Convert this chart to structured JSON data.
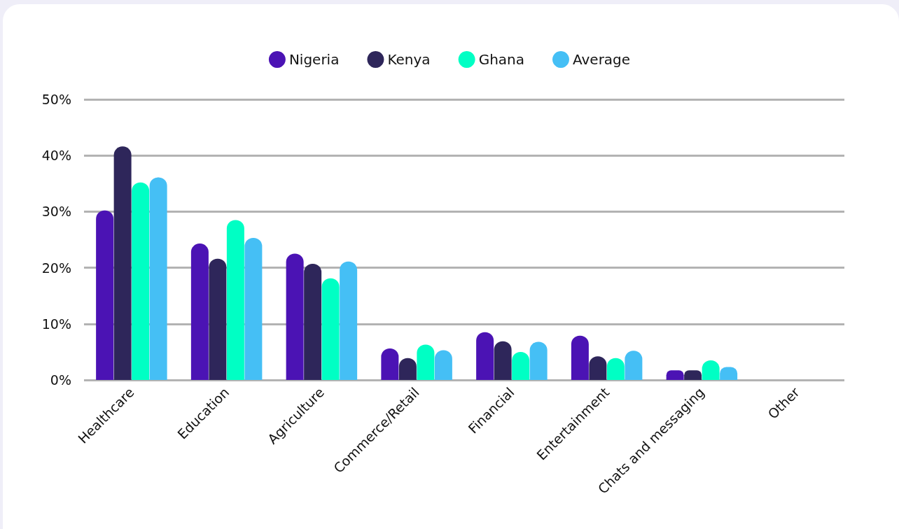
{
  "chart_data": {
    "type": "bar",
    "categories": [
      "Healthcare",
      "Education",
      "Agriculture",
      "Commerce/Retail",
      "Financial",
      "Entertainment",
      "Chats and messaging",
      "Other"
    ],
    "series": [
      {
        "name": "Nigeria",
        "color": "#4b13b4",
        "values": [
          30.2,
          24.3,
          22.5,
          5.6,
          8.5,
          7.9,
          1.7,
          0
        ]
      },
      {
        "name": "Kenya",
        "color": "#2e265a",
        "values": [
          41.6,
          21.6,
          20.7,
          3.9,
          6.9,
          4.2,
          1.7,
          0
        ]
      },
      {
        "name": "Ghana",
        "color": "#00ffc4",
        "values": [
          35.2,
          28.5,
          18.1,
          6.3,
          5.0,
          3.9,
          3.5,
          0
        ]
      },
      {
        "name": "Average",
        "color": "#45bff5",
        "values": [
          36.1,
          25.3,
          21.1,
          5.3,
          6.8,
          5.2,
          2.3,
          0
        ]
      }
    ],
    "ylim": [
      0,
      50
    ],
    "yticks": [
      {
        "value": 0,
        "label": "0%"
      },
      {
        "value": 10,
        "label": "10%"
      },
      {
        "value": 20,
        "label": "20%"
      },
      {
        "value": 30,
        "label": "30%"
      },
      {
        "value": 40,
        "label": "40%"
      },
      {
        "value": 50,
        "label": "50%"
      }
    ],
    "grid": "y",
    "legend": "top"
  }
}
